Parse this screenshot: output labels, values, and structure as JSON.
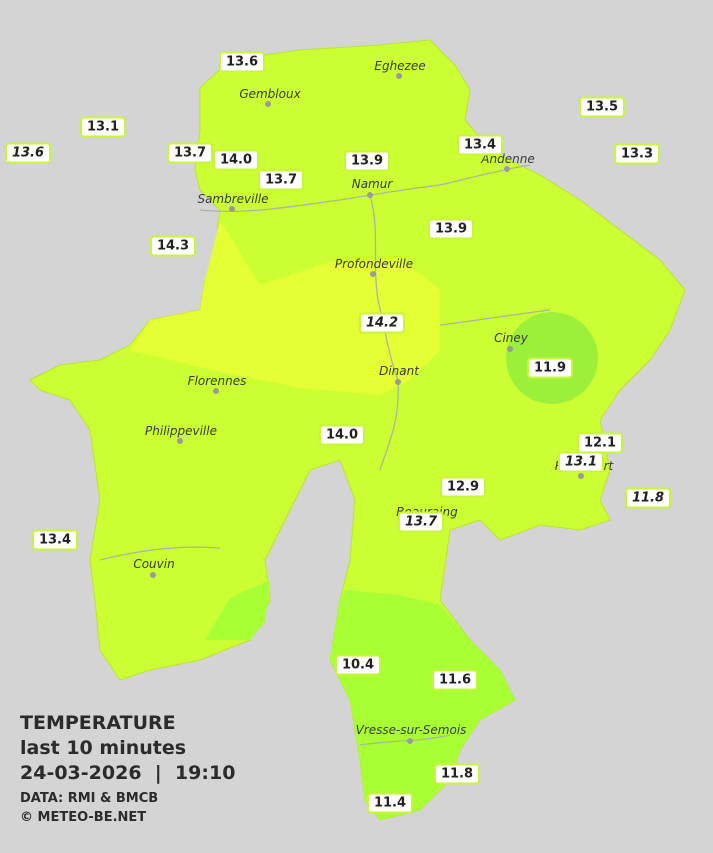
{
  "legend": {
    "title": "TEMPERATURE",
    "subtitle": "last 10 minutes",
    "datetime": "24-03-2026  |  19:10",
    "source": "DATA: RMI & BMCB",
    "credit": "© METEO-BE.NET"
  },
  "towns": [
    "Eghezee",
    "Gembloux",
    "Andenne",
    "Namur",
    "Sambreville",
    "Profondeville",
    "Ciney",
    "Florennes",
    "Dinant",
    "Philippeville",
    "Rochefort",
    "Beauraing",
    "Couvin",
    "Vresse-sur-Semois"
  ],
  "stations": [
    "13.6",
    "13.1",
    "13.6",
    "13.7",
    "14.0",
    "13.7",
    "13.9",
    "13.4",
    "13.5",
    "13.3",
    "14.3",
    "13.9",
    "14.2",
    "11.9",
    "14.0",
    "12.1",
    "13.1",
    "12.9",
    "11.8",
    "13.7",
    "13.4",
    "10.4",
    "11.6",
    "11.8",
    "11.4"
  ]
}
